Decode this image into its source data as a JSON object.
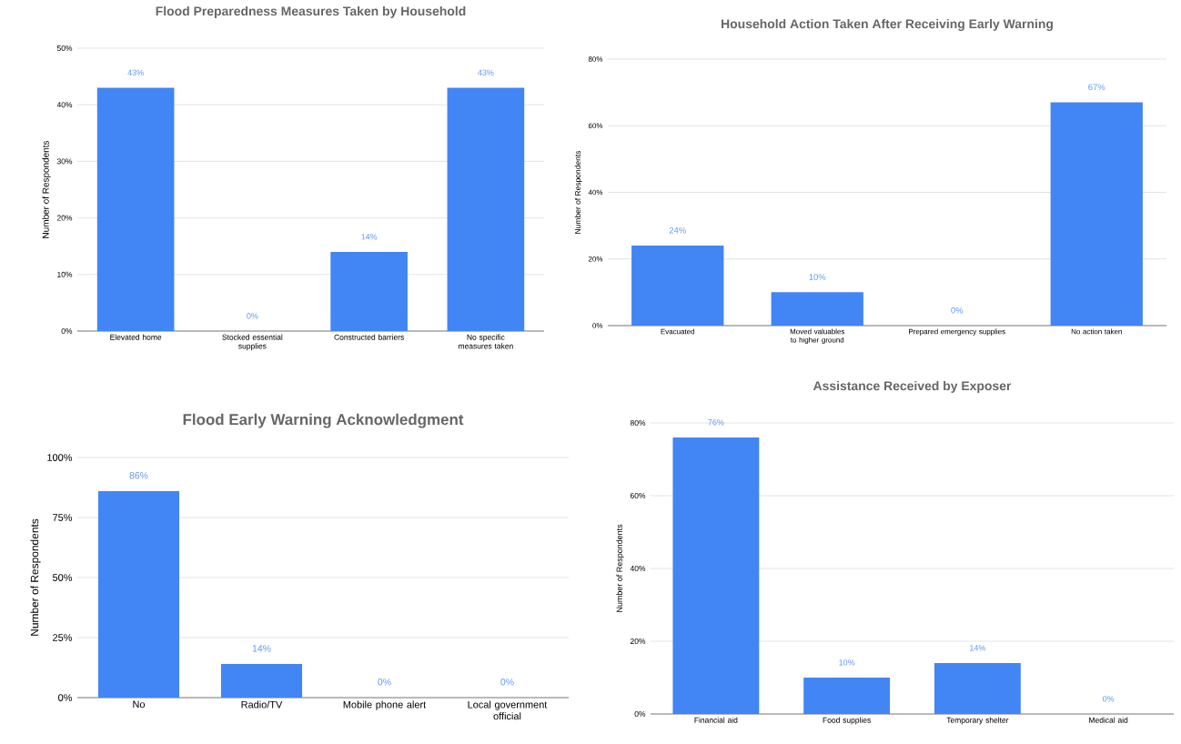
{
  "chart_data": [
    {
      "type": "bar",
      "title": "Flood Preparedness Measures Taken by Household",
      "ylabel": "Number of Respondents",
      "categories": [
        "Elevated home",
        "Stocked essential supplies",
        "Constructed barriers",
        "No specific measures taken"
      ],
      "values": [
        43,
        0,
        14,
        43
      ],
      "value_labels": [
        "43%",
        "0%",
        "14%",
        "43%"
      ],
      "color": "#4285f4",
      "ylim": [
        0,
        50
      ],
      "yticks": [
        {
          "value": 0,
          "label": "0%"
        },
        {
          "value": 10,
          "label": "10%"
        },
        {
          "value": 20,
          "label": "20%"
        },
        {
          "value": 30,
          "label": "30%"
        },
        {
          "value": 40,
          "label": "40%"
        },
        {
          "value": 50,
          "label": "50%"
        }
      ],
      "grid": "y"
    },
    {
      "type": "bar",
      "title": "Household Action Taken After Receiving Early Warning",
      "ylabel": "Number of Respondents",
      "categories": [
        "Evacuated",
        "Moved valuables to higher ground",
        "Prepared emergency supplies",
        "No action taken"
      ],
      "values": [
        24,
        10,
        0,
        67
      ],
      "value_labels": [
        "24%",
        "10%",
        "0%",
        "67%"
      ],
      "color": "#4285f4",
      "ylim": [
        0,
        80
      ],
      "yticks": [
        {
          "value": 0,
          "label": "0%"
        },
        {
          "value": 20,
          "label": "20%"
        },
        {
          "value": 40,
          "label": "40%"
        },
        {
          "value": 60,
          "label": "60%"
        },
        {
          "value": 80,
          "label": "80%"
        }
      ],
      "grid": "y"
    },
    {
      "type": "bar",
      "title": "Flood Early Warning Acknowledgment",
      "ylabel": "Number of Respondents",
      "categories": [
        "No",
        "Radio/TV",
        "Mobile phone alert",
        "Local government official"
      ],
      "values": [
        86,
        14,
        0,
        0
      ],
      "value_labels": [
        "86%",
        "14%",
        "0%",
        "0%"
      ],
      "color": "#4285f4",
      "ylim": [
        0,
        100
      ],
      "yticks": [
        {
          "value": 0,
          "label": "0%"
        },
        {
          "value": 25,
          "label": "25%"
        },
        {
          "value": 50,
          "label": "50%"
        },
        {
          "value": 75,
          "label": "75%"
        },
        {
          "value": 100,
          "label": "100%"
        }
      ],
      "grid": "y"
    },
    {
      "type": "bar",
      "title": "Assistance Received by Exposer",
      "ylabel": "Number of Respondents",
      "categories": [
        "Financial aid",
        "Food supplies",
        "Temporary shelter",
        "Medical aid"
      ],
      "values": [
        76,
        10,
        14,
        0
      ],
      "value_labels": [
        "76%",
        "10%",
        "14%",
        "0%"
      ],
      "color": "#4285f4",
      "ylim": [
        0,
        80
      ],
      "yticks": [
        {
          "value": 0,
          "label": "0%"
        },
        {
          "value": 20,
          "label": "20%"
        },
        {
          "value": 40,
          "label": "40%"
        },
        {
          "value": 60,
          "label": "60%"
        },
        {
          "value": 80,
          "label": "80%"
        }
      ],
      "grid": "y"
    }
  ]
}
